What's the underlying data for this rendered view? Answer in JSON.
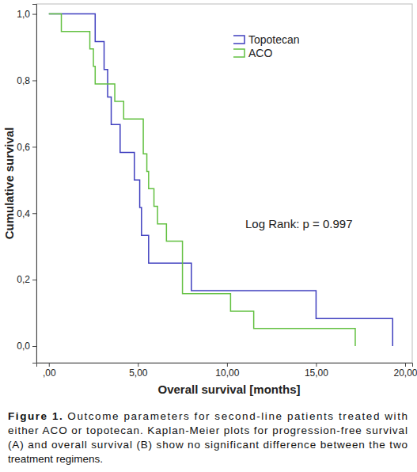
{
  "chart_data": {
    "type": "line",
    "line_style": "step",
    "x_label": "Overall survival [months]",
    "y_label": "Cumulative survival",
    "annotation": "Log Rank: p = 0.997",
    "legend": "top-right",
    "grid": false,
    "xlim": [
      -0.7,
      20.4
    ],
    "ylim": [
      -0.05,
      1.03
    ],
    "xticks": [
      {
        "value": 0,
        "label": ",00"
      },
      {
        "value": 5,
        "label": "5,00"
      },
      {
        "value": 10,
        "label": "10,00"
      },
      {
        "value": 15,
        "label": "15,00"
      },
      {
        "value": 20,
        "label": "20,00"
      }
    ],
    "yticks": [
      {
        "value": 0,
        "label": "0,0"
      },
      {
        "value": 0.2,
        "label": "0,2"
      },
      {
        "value": 0.4,
        "label": "0,4"
      },
      {
        "value": 0.6,
        "label": "0,6"
      },
      {
        "value": 0.8,
        "label": "0,8"
      },
      {
        "value": 1,
        "label": "1,0"
      }
    ],
    "series": [
      {
        "name": "Topotecan",
        "color": "#3f3fbf",
        "x": [
          0,
          2.6,
          3.1,
          3.3,
          3.5,
          4.0,
          4.8,
          5.1,
          5.2,
          5.6,
          8.0,
          15.0,
          19.3
        ],
        "values": [
          1.0,
          0.917,
          0.833,
          0.75,
          0.667,
          0.583,
          0.5,
          0.417,
          0.333,
          0.25,
          0.167,
          0.083,
          0.0
        ]
      },
      {
        "name": "ACO",
        "color": "#62c040",
        "x": [
          0,
          0.7,
          2.3,
          2.5,
          2.6,
          3.7,
          4.2,
          5.3,
          5.5,
          5.6,
          5.9,
          6.1,
          6.6,
          7.5,
          10.2,
          11.5,
          17.2
        ],
        "values": [
          1.0,
          0.947,
          0.895,
          0.842,
          0.789,
          0.737,
          0.684,
          0.579,
          0.526,
          0.474,
          0.421,
          0.368,
          0.316,
          0.158,
          0.105,
          0.053,
          0.0
        ]
      }
    ]
  },
  "caption": {
    "label": "Figure 1.",
    "lines": [
      "Outcome parameters for second-line patients treated with",
      "either ACO or topotecan. Kaplan-Meier plots for progression-free survival",
      "(A) and overall survival (B) show no significant difference between the two",
      "treatment regimens."
    ]
  }
}
